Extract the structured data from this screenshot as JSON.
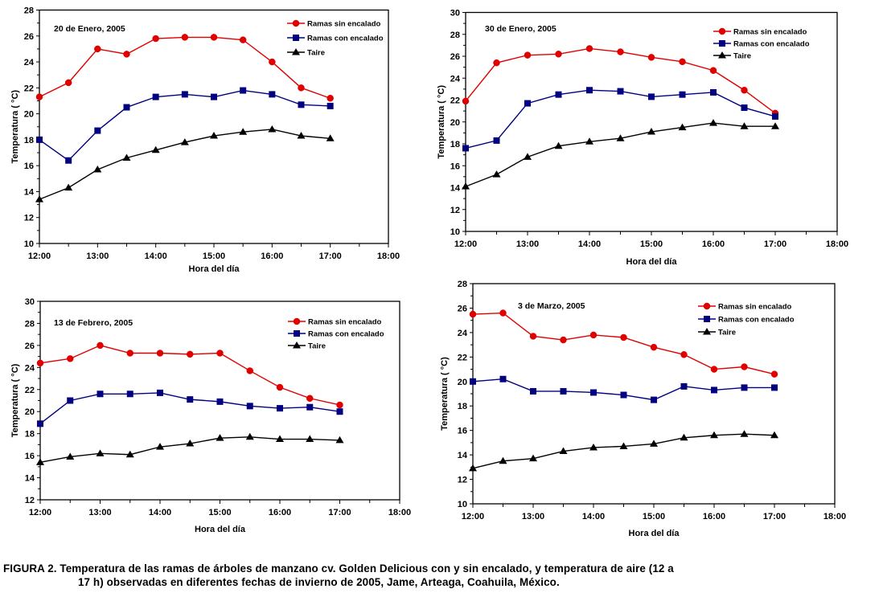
{
  "caption": {
    "line1": "FIGURA 2. Temperatura de las ramas de árboles de manzano cv. Golden Delicious con y sin encalado, y temperatura de aire (12 a",
    "line2": "17 h) observadas en diferentes fechas de invierno de 2005, Jame, Arteaga, Coahuila, México."
  },
  "colors": {
    "sin_encalado": "#e00000",
    "con_encalado": "#000080",
    "taire": "#000000"
  },
  "chart_data": [
    {
      "type": "line",
      "title": "20 de Enero, 2005",
      "xlabel": "Hora del día",
      "ylabel": "Temperatura ( °C)",
      "xlim": [
        12,
        18
      ],
      "ylim": [
        10,
        28
      ],
      "xticks": [
        "12:00",
        "13:00",
        "14:00",
        "15:00",
        "16:00",
        "17:00",
        "18:00"
      ],
      "yticks": [
        "10",
        "12",
        "14",
        "16",
        "18",
        "20",
        "22",
        "24",
        "26",
        "28"
      ],
      "x": [
        12,
        12.5,
        13,
        13.5,
        14,
        14.5,
        15,
        15.5,
        16,
        16.5,
        17
      ],
      "legend_position": "top-right",
      "series": [
        {
          "name": "Ramas  sin encalado",
          "key": "sin_encalado",
          "marker": "circle",
          "values": [
            21.3,
            22.4,
            25.0,
            24.6,
            25.8,
            25.9,
            25.9,
            25.7,
            24.0,
            22.0,
            21.2
          ]
        },
        {
          "name": "Ramas con encalado",
          "key": "con_encalado",
          "marker": "square",
          "values": [
            18.0,
            16.4,
            18.7,
            20.5,
            21.3,
            21.5,
            21.3,
            21.8,
            21.5,
            20.7,
            20.6
          ]
        },
        {
          "name": "Taire",
          "key": "taire",
          "marker": "triangle",
          "values": [
            13.4,
            14.3,
            15.7,
            16.6,
            17.2,
            17.8,
            18.3,
            18.6,
            18.8,
            18.3,
            18.1
          ]
        }
      ]
    },
    {
      "type": "line",
      "title": "30 de Enero, 2005",
      "xlabel": "Hora del día",
      "ylabel": "Temperatura ( °C)",
      "xlim": [
        12,
        18
      ],
      "ylim": [
        10,
        30
      ],
      "xticks": [
        "12:00",
        "13:00",
        "14:00",
        "15:00",
        "16:00",
        "17:00",
        "18:00"
      ],
      "yticks": [
        "10",
        "12",
        "14",
        "16",
        "18",
        "20",
        "22",
        "24",
        "26",
        "28",
        "30"
      ],
      "x": [
        12,
        12.5,
        13,
        13.5,
        14,
        14.5,
        15,
        15.5,
        16,
        16.5,
        17
      ],
      "legend_position": "top-right",
      "series": [
        {
          "name": "Ramas sin encalado",
          "key": "sin_encalado",
          "marker": "circle",
          "values": [
            21.9,
            25.4,
            26.1,
            26.2,
            26.7,
            26.4,
            25.9,
            25.5,
            24.7,
            22.9,
            20.8
          ]
        },
        {
          "name": "Ramas con encalado",
          "key": "con_encalado",
          "marker": "square",
          "values": [
            17.6,
            18.3,
            21.7,
            22.5,
            22.9,
            22.8,
            22.3,
            22.5,
            22.7,
            21.3,
            20.5
          ]
        },
        {
          "name": "Taire",
          "key": "taire",
          "marker": "triangle",
          "values": [
            14.1,
            15.2,
            16.8,
            17.8,
            18.2,
            18.5,
            19.1,
            19.5,
            19.9,
            19.6,
            19.6
          ]
        }
      ]
    },
    {
      "type": "line",
      "title": "13 de Febrero, 2005",
      "xlabel": "Hora del día",
      "ylabel": "Temperatura ( °C)",
      "xlim": [
        12,
        18
      ],
      "ylim": [
        12,
        30
      ],
      "xticks": [
        "12:00",
        "13:00",
        "14:00",
        "15:00",
        "16:00",
        "17:00",
        "18:00"
      ],
      "yticks": [
        "12",
        "14",
        "16",
        "18",
        "20",
        "22",
        "24",
        "26",
        "28",
        "30"
      ],
      "x": [
        12,
        12.5,
        13,
        13.5,
        14,
        14.5,
        15,
        15.5,
        16,
        16.5,
        17
      ],
      "legend_position": "top-right",
      "series": [
        {
          "name": "Ramas sin encalado",
          "key": "sin_encalado",
          "marker": "circle",
          "values": [
            24.4,
            24.8,
            26.0,
            25.3,
            25.3,
            25.2,
            25.3,
            23.7,
            22.2,
            21.2,
            20.6
          ]
        },
        {
          "name": "Ramas con encalado",
          "key": "con_encalado",
          "marker": "square",
          "values": [
            18.9,
            21.0,
            21.6,
            21.6,
            21.7,
            21.1,
            20.9,
            20.5,
            20.3,
            20.4,
            20.0
          ]
        },
        {
          "name": "Taire",
          "key": "taire",
          "marker": "triangle",
          "values": [
            15.4,
            15.9,
            16.2,
            16.1,
            16.8,
            17.1,
            17.6,
            17.7,
            17.5,
            17.5,
            17.4
          ]
        }
      ]
    },
    {
      "type": "line",
      "title": "3 de Marzo, 2005",
      "xlabel": "Hora del día",
      "ylabel": "Temperatura ( °C)",
      "xlim": [
        12,
        18
      ],
      "ylim": [
        10,
        28
      ],
      "xticks": [
        "12:00",
        "13:00",
        "14:00",
        "15:00",
        "16:00",
        "17:00",
        "18:00"
      ],
      "yticks": [
        "10",
        "12",
        "14",
        "16",
        "18",
        "20",
        "22",
        "24",
        "26",
        "28"
      ],
      "x": [
        12,
        12.5,
        13,
        13.5,
        14,
        14.5,
        15,
        15.5,
        16,
        16.5,
        17
      ],
      "legend_position": "top-right",
      "series": [
        {
          "name": "Ramas sin encalado",
          "key": "sin_encalado",
          "marker": "circle",
          "values": [
            25.5,
            25.6,
            23.7,
            23.4,
            23.8,
            23.6,
            22.8,
            22.2,
            21.0,
            21.2,
            20.6
          ]
        },
        {
          "name": "Ramas con encalado",
          "key": "con_encalado",
          "marker": "square",
          "values": [
            20.0,
            20.2,
            19.2,
            19.2,
            19.1,
            18.9,
            18.5,
            19.6,
            19.3,
            19.5,
            19.5
          ]
        },
        {
          "name": "Taire",
          "key": "taire",
          "marker": "triangle",
          "values": [
            12.9,
            13.5,
            13.7,
            14.3,
            14.6,
            14.7,
            14.9,
            15.4,
            15.6,
            15.7,
            15.6
          ]
        }
      ]
    }
  ]
}
